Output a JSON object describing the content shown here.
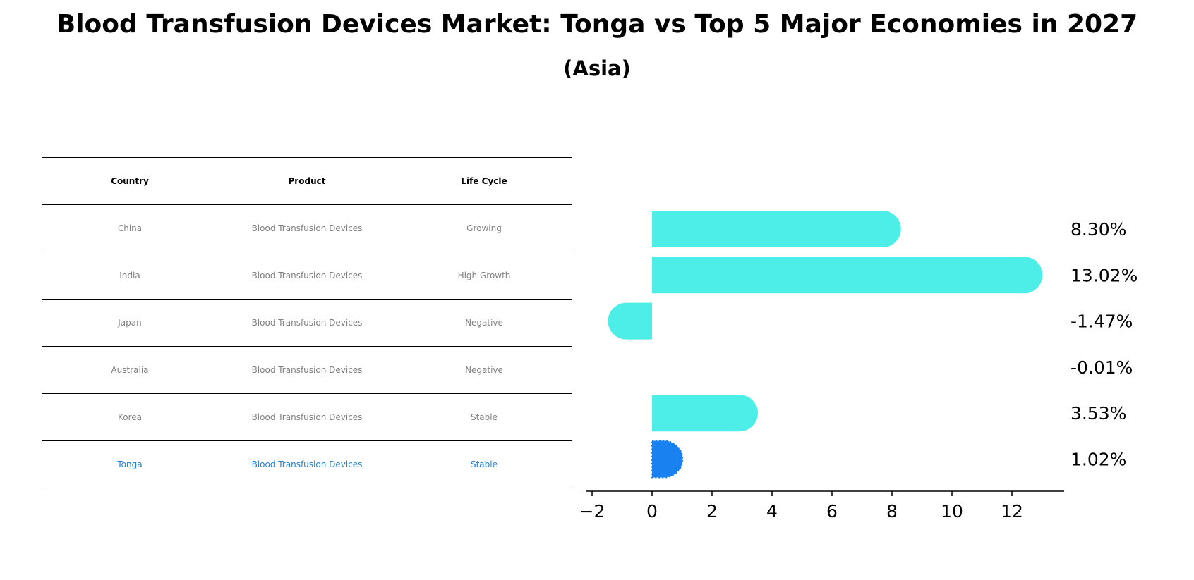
{
  "title": "Blood Transfusion Devices Market: Tonga vs Top 5 Major Economies in 2027",
  "subtitle": "(Asia)",
  "table": {
    "headers": [
      "Country",
      "Product",
      "Life Cycle"
    ],
    "rows": [
      {
        "country": "China",
        "product": "Blood Transfusion Devices",
        "life_cycle": "Growing"
      },
      {
        "country": "India",
        "product": "Blood Transfusion Devices",
        "life_cycle": "High Growth"
      },
      {
        "country": "Japan",
        "product": "Blood Transfusion Devices",
        "life_cycle": "Negative"
      },
      {
        "country": "Australia",
        "product": "Blood Transfusion Devices",
        "life_cycle": "Negative"
      },
      {
        "country": "Korea",
        "product": "Blood Transfusion Devices",
        "life_cycle": "Stable"
      },
      {
        "country": "Tonga",
        "product": "Blood Transfusion Devices",
        "life_cycle": "Stable"
      }
    ]
  },
  "colors": {
    "bar": "#4deee8",
    "highlight": "#1a82f0",
    "text_muted": "#808080",
    "highlight_text": "#1f7fd6"
  },
  "chart_data": {
    "type": "bar",
    "orientation": "horizontal",
    "categories": [
      "China",
      "India",
      "Japan",
      "Australia",
      "Korea",
      "Tonga"
    ],
    "values": [
      8.3,
      13.02,
      -1.47,
      -0.01,
      3.53,
      1.02
    ],
    "value_labels": [
      "8.30%",
      "13.02%",
      "-1.47%",
      "-0.01%",
      "3.53%",
      "1.02%"
    ],
    "highlight": "Tonga",
    "xlim": [
      -2.2,
      13.8
    ],
    "xticks": [
      -2,
      0,
      2,
      4,
      6,
      8,
      10,
      12
    ],
    "xtick_labels": [
      "−2",
      "0",
      "2",
      "4",
      "6",
      "8",
      "10",
      "12"
    ],
    "xlabel": "",
    "ylabel": "",
    "grid": false
  }
}
